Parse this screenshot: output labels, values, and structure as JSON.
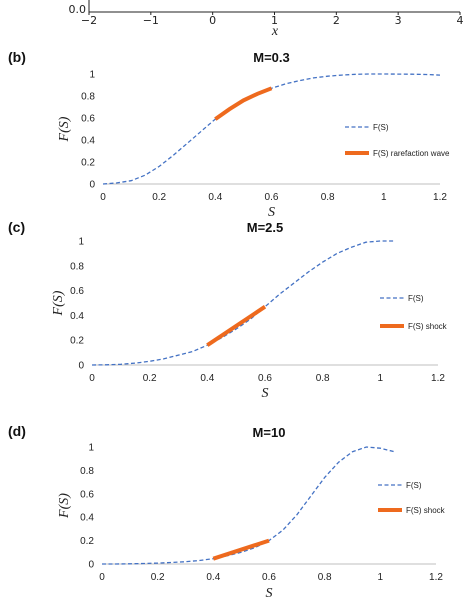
{
  "top_strip": {
    "y_tick": "0.0",
    "x_ticks": [
      "−2",
      "−1",
      "0",
      "1",
      "2",
      "3",
      "4"
    ],
    "xlabel": "x"
  },
  "chart_data": [
    {
      "type": "line",
      "panel": "(b)",
      "title": "M=0.3",
      "xlabel": "S",
      "ylabel": "F(S)",
      "xlim": [
        0,
        1.2
      ],
      "ylim": [
        0,
        1
      ],
      "x_ticks": [
        "0",
        "0.2",
        "0.4",
        "0.6",
        "0.8",
        "1",
        "1.2"
      ],
      "y_ticks": [
        "0",
        "0.2",
        "0.4",
        "0.6",
        "0.8",
        "1"
      ],
      "legend_position": "right",
      "series": [
        {
          "name": "F(S)",
          "style": "dashed",
          "color": "#4472c4",
          "x": [
            0,
            0.05,
            0.1,
            0.15,
            0.2,
            0.25,
            0.3,
            0.35,
            0.4,
            0.45,
            0.5,
            0.55,
            0.6,
            0.65,
            0.7,
            0.75,
            0.8,
            0.85,
            0.9,
            0.95,
            1.0,
            1.05,
            1.1,
            1.15,
            1.2
          ],
          "y": [
            0.0,
            0.01,
            0.03,
            0.08,
            0.16,
            0.26,
            0.37,
            0.48,
            0.59,
            0.68,
            0.76,
            0.82,
            0.87,
            0.91,
            0.94,
            0.965,
            0.98,
            0.99,
            0.997,
            1.0,
            1.0,
            0.999,
            0.998,
            0.995,
            0.99
          ]
        },
        {
          "name": "F(S) rarefaction wave",
          "style": "solid-thick",
          "color": "#ee6a1e",
          "x": [
            0.4,
            0.45,
            0.5,
            0.55,
            0.6
          ],
          "y": [
            0.59,
            0.68,
            0.76,
            0.82,
            0.87
          ]
        }
      ]
    },
    {
      "type": "line",
      "panel": "(c)",
      "title": "M=2.5",
      "xlabel": "S",
      "ylabel": "F(S)",
      "xlim": [
        0,
        1.2
      ],
      "ylim": [
        0,
        1
      ],
      "x_ticks": [
        "0",
        "0.2",
        "0.4",
        "0.6",
        "0.8",
        "1",
        "1.2"
      ],
      "y_ticks": [
        "0",
        "0.2",
        "0.4",
        "0.6",
        "0.8",
        "1"
      ],
      "legend_position": "right",
      "series": [
        {
          "name": "F(S)",
          "style": "dashed",
          "color": "#4472c4",
          "x": [
            0,
            0.05,
            0.1,
            0.15,
            0.2,
            0.25,
            0.3,
            0.35,
            0.4,
            0.45,
            0.5,
            0.55,
            0.6,
            0.65,
            0.7,
            0.75,
            0.8,
            0.85,
            0.9,
            0.95,
            1.0,
            1.05
          ],
          "y": [
            0.0,
            0.002,
            0.006,
            0.015,
            0.03,
            0.05,
            0.08,
            0.11,
            0.16,
            0.22,
            0.29,
            0.37,
            0.47,
            0.57,
            0.66,
            0.75,
            0.83,
            0.9,
            0.95,
            0.99,
            1.0,
            1.0
          ]
        },
        {
          "name": "F(S) shock",
          "style": "solid-thick",
          "color": "#ee6a1e",
          "x": [
            0.4,
            0.6
          ],
          "y": [
            0.16,
            0.47
          ]
        }
      ]
    },
    {
      "type": "line",
      "panel": "(d)",
      "title": "M=10",
      "xlabel": "S",
      "ylabel": "F(S)",
      "xlim": [
        0,
        1.2
      ],
      "ylim": [
        0,
        1
      ],
      "x_ticks": [
        "0",
        "0.2",
        "0.4",
        "0.6",
        "0.8",
        "1",
        "1.2"
      ],
      "y_ticks": [
        "0",
        "0.2",
        "0.4",
        "0.6",
        "0.8",
        "1"
      ],
      "legend_position": "right",
      "series": [
        {
          "name": "F(S)",
          "style": "dashed",
          "color": "#4472c4",
          "x": [
            0,
            0.05,
            0.1,
            0.15,
            0.2,
            0.25,
            0.3,
            0.35,
            0.4,
            0.45,
            0.5,
            0.55,
            0.6,
            0.65,
            0.7,
            0.75,
            0.8,
            0.85,
            0.9,
            0.95,
            1.0,
            1.05
          ],
          "y": [
            0.0,
            0.0,
            0.002,
            0.004,
            0.008,
            0.013,
            0.02,
            0.03,
            0.045,
            0.07,
            0.1,
            0.14,
            0.2,
            0.29,
            0.42,
            0.58,
            0.74,
            0.87,
            0.96,
            1.0,
            0.99,
            0.96
          ]
        },
        {
          "name": "F(S) shock",
          "style": "solid-thick",
          "color": "#ee6a1e",
          "x": [
            0.4,
            0.6
          ],
          "y": [
            0.045,
            0.2
          ]
        }
      ]
    }
  ]
}
